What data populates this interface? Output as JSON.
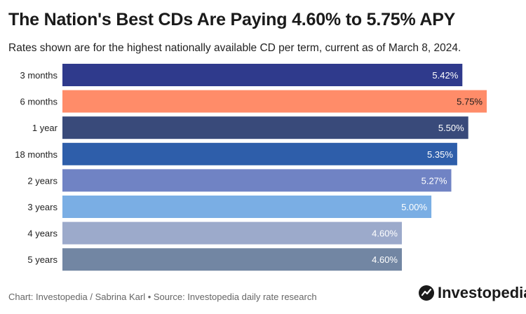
{
  "title": "The Nation's Best CDs Are Paying 4.60% to 5.75% APY",
  "subtitle": "Rates shown are for the highest nationally available CD per term, current as of March 8, 2024.",
  "source": "Chart: Investopedia / Sabrina Karl • Source: Investopedia daily rate research",
  "brand": {
    "name": "Investopedia",
    "icon": "investopedia-logo-icon"
  },
  "chart_data": {
    "type": "bar",
    "orientation": "horizontal",
    "title": "The Nation's Best CDs Are Paying 4.60% to 5.75% APY",
    "subtitle": "Rates shown are for the highest nationally available CD per term, current as of March 8, 2024.",
    "categories": [
      "3 months",
      "6 months",
      "1 year",
      "18 months",
      "2 years",
      "3 years",
      "4 years",
      "5 years"
    ],
    "values": [
      5.42,
      5.75,
      5.5,
      5.35,
      5.27,
      5.0,
      4.6,
      4.6
    ],
    "labels": [
      "5.42%",
      "5.75%",
      "5.50%",
      "5.35%",
      "5.27%",
      "5.00%",
      "4.60%",
      "4.60%"
    ],
    "colors": [
      "#2f3a8c",
      "#ff8c69",
      "#394a7a",
      "#2e5eaa",
      "#7083c4",
      "#7aaee4",
      "#9caacb",
      "#7286a3"
    ],
    "label_colors": [
      "#ffffff",
      "#1a1a1a",
      "#ffffff",
      "#ffffff",
      "#ffffff",
      "#ffffff",
      "#ffffff",
      "#ffffff"
    ],
    "xlim": [
      0,
      5.75
    ],
    "grid": false,
    "legend": "none"
  }
}
